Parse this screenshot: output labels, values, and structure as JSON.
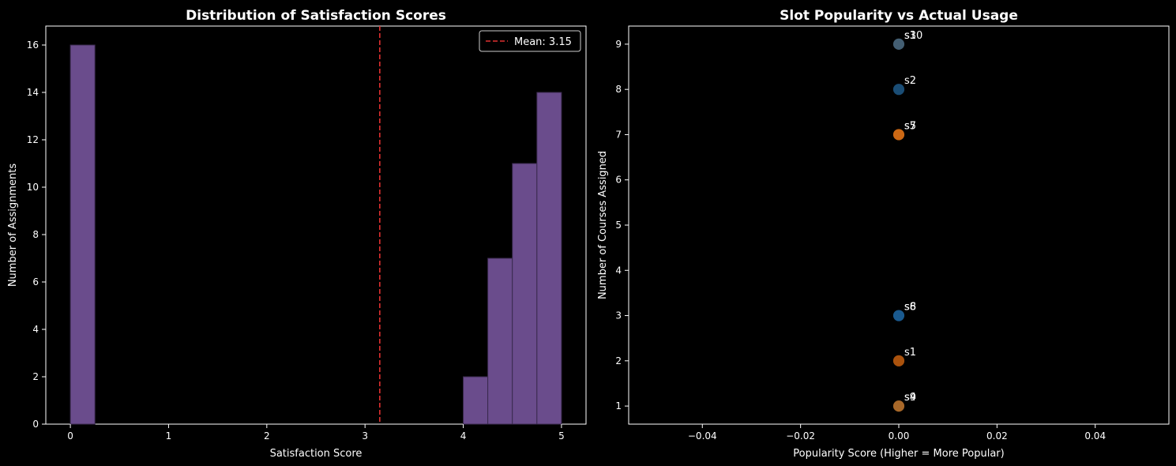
{
  "chart_data": [
    {
      "type": "bar",
      "title": "Distribution of Satisfaction Scores",
      "xlabel": "Satisfaction Score",
      "ylabel": "Number of Assignments",
      "xlim": [
        -0.25,
        5.25
      ],
      "ylim": [
        0,
        16.8
      ],
      "xticks": [
        "0",
        "1",
        "2",
        "3",
        "4",
        "5"
      ],
      "yticks": [
        "0",
        "2",
        "4",
        "6",
        "8",
        "10",
        "12",
        "14",
        "16"
      ],
      "bins": [
        {
          "start": 0.0,
          "end": 0.25,
          "count": 16
        },
        {
          "start": 4.0,
          "end": 4.25,
          "count": 2
        },
        {
          "start": 4.25,
          "end": 4.5,
          "count": 7
        },
        {
          "start": 4.5,
          "end": 4.75,
          "count": 11
        },
        {
          "start": 4.75,
          "end": 5.0,
          "count": 14
        }
      ],
      "bar_color": "#6a4c8c",
      "mean_line": {
        "value": 3.15,
        "label": "Mean: 3.15",
        "color": "#e03030"
      },
      "legend_position": "top-right",
      "grid": false
    },
    {
      "type": "scatter",
      "title": "Slot Popularity vs Actual Usage",
      "xlabel": "Popularity Score (Higher = More Popular)",
      "ylabel": "Number of Courses Assigned",
      "xlim": [
        -0.055,
        0.055
      ],
      "ylim": [
        0.6,
        9.4
      ],
      "xticks": [
        "−0.04",
        "−0.02",
        "0.00",
        "0.02",
        "0.04"
      ],
      "xtick_values": [
        -0.04,
        -0.02,
        0.0,
        0.02,
        0.04
      ],
      "yticks": [
        "1",
        "2",
        "3",
        "4",
        "5",
        "6",
        "7",
        "8",
        "9"
      ],
      "points": [
        {
          "x": 0,
          "y": 9,
          "color": "#4f6f86"
        },
        {
          "x": 0,
          "y": 8,
          "color": "#1f5a8a"
        },
        {
          "x": 0,
          "y": 7,
          "color": "#f07a18"
        },
        {
          "x": 0,
          "y": 3,
          "color": "#1f6aa8"
        },
        {
          "x": 0,
          "y": 2,
          "color": "#c8600f"
        },
        {
          "x": 0,
          "y": 1,
          "color": "#c67a30"
        }
      ],
      "labels": [
        {
          "text": "s3",
          "x": 0,
          "y": 9
        },
        {
          "text": "s10",
          "x": 0,
          "y": 9
        },
        {
          "text": "s2",
          "x": 0,
          "y": 8
        },
        {
          "text": "s5",
          "x": 0,
          "y": 7
        },
        {
          "text": "s7",
          "x": 0,
          "y": 7
        },
        {
          "text": "s6",
          "x": 0,
          "y": 3
        },
        {
          "text": "s8",
          "x": 0,
          "y": 3
        },
        {
          "text": "s1",
          "x": 0,
          "y": 2
        },
        {
          "text": "s4",
          "x": 0,
          "y": 1
        },
        {
          "text": "s9",
          "x": 0,
          "y": 1
        }
      ],
      "grid": false
    }
  ]
}
